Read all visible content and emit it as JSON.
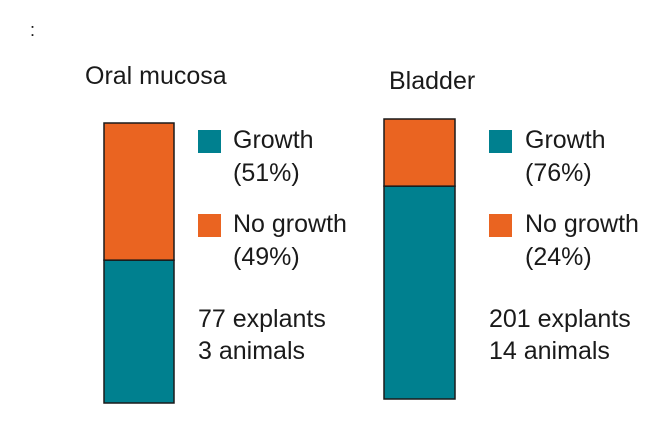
{
  "colors": {
    "growth": "#00808F",
    "no_growth": "#EA6421",
    "outline": "#1a1a1a",
    "text": "#1a1a1a"
  },
  "corner_mark": ":",
  "chart_data": [
    {
      "type": "bar",
      "stacked": true,
      "title": "Oral mucosa",
      "categories": [
        "Oral mucosa"
      ],
      "series": [
        {
          "name": "Growth",
          "values": [
            51
          ]
        },
        {
          "name": "No growth",
          "values": [
            49
          ]
        }
      ],
      "ylim": [
        0,
        100
      ],
      "legend": [
        {
          "label": "Growth",
          "pct": "(51%)",
          "color_key": "growth"
        },
        {
          "label": "No growth",
          "pct": "(49%)",
          "color_key": "no_growth"
        }
      ],
      "notes": [
        "77 explants",
        "3 animals"
      ]
    },
    {
      "type": "bar",
      "stacked": true,
      "title": "Bladder",
      "categories": [
        "Bladder"
      ],
      "series": [
        {
          "name": "Growth",
          "values": [
            76
          ]
        },
        {
          "name": "No growth",
          "values": [
            24
          ]
        }
      ],
      "ylim": [
        0,
        100
      ],
      "legend": [
        {
          "label": "Growth",
          "pct": "(76%)",
          "color_key": "growth"
        },
        {
          "label": "No growth",
          "pct": "(24%)",
          "color_key": "no_growth"
        }
      ],
      "notes": [
        "201 explants",
        "14 animals"
      ]
    }
  ]
}
